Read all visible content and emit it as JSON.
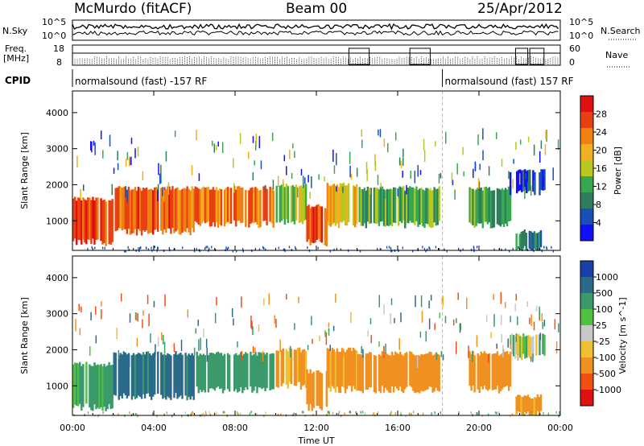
{
  "header": {
    "station": "McMurdo (fitACF)",
    "beam": "Beam 00",
    "date": "25/Apr/2012"
  },
  "noise_panel": {
    "left_label": "N.Sky",
    "right_label": "N.Search",
    "left_ticks": [
      "10^5",
      "10^0"
    ],
    "right_ticks": [
      "10^5",
      "10^0"
    ]
  },
  "freq_panel": {
    "label_line1": "Freq.",
    "label_line2": "[MHz]",
    "left_ticks": [
      "18",
      "8"
    ],
    "right_label": "Nave",
    "right_ticks": [
      "60",
      "0"
    ]
  },
  "cpid_panel": {
    "label": "CPID",
    "modes": [
      {
        "text": "normalsound (fast) -157 RF",
        "start": 0,
        "end": 18.2
      },
      {
        "text": "normalsound (fast) 157 RF",
        "start": 18.2,
        "end": 24
      }
    ]
  },
  "chart_data": [
    {
      "type": "heatmap",
      "quantity": "Power",
      "xlabel": "Time UT",
      "ylabel": "Slant Range [km]",
      "xlim": [
        0,
        24
      ],
      "ylim": [
        180,
        4600
      ],
      "x_ticks": [
        "00:00",
        "04:00",
        "08:00",
        "12:00",
        "16:00",
        "20:00",
        "00:00"
      ],
      "y_ticks": [
        1000,
        2000,
        3000,
        4000
      ],
      "colorbar": {
        "label": "Power [dB]",
        "ticks": [
          4,
          8,
          12,
          16,
          20,
          24,
          28
        ],
        "range": [
          0,
          32
        ],
        "colors": [
          "#1010ff",
          "#1b4fb8",
          "#2e7d5e",
          "#38a850",
          "#b8c820",
          "#f0b020",
          "#f08010",
          "#e84010",
          "#e01010"
        ]
      },
      "echo_bands": [
        {
          "t_start": 0.0,
          "t_end": 2.0,
          "range_low": 400,
          "range_high": 1600,
          "value": 27
        },
        {
          "t_start": 2.0,
          "t_end": 6.0,
          "range_low": 700,
          "range_high": 1900,
          "value": 25
        },
        {
          "t_start": 6.0,
          "t_end": 10.0,
          "range_low": 900,
          "range_high": 1900,
          "value": 24
        },
        {
          "t_start": 10.0,
          "t_end": 11.5,
          "range_low": 1000,
          "range_high": 2000,
          "value": 16
        },
        {
          "t_start": 11.5,
          "t_end": 12.5,
          "range_low": 400,
          "range_high": 1400,
          "value": 26
        },
        {
          "t_start": 12.5,
          "t_end": 14.0,
          "range_low": 900,
          "range_high": 2000,
          "value": 20
        },
        {
          "t_start": 14.0,
          "t_end": 18.0,
          "range_low": 900,
          "range_high": 1900,
          "value": 12
        },
        {
          "t_start": 19.5,
          "t_end": 21.5,
          "range_low": 900,
          "range_high": 1900,
          "value": 12
        },
        {
          "t_start": 21.5,
          "t_end": 23.2,
          "range_low": 1800,
          "range_high": 2400,
          "value": 6
        },
        {
          "t_start": 21.8,
          "t_end": 23.0,
          "range_low": 200,
          "range_high": 700,
          "value": 8
        }
      ]
    },
    {
      "type": "heatmap",
      "quantity": "Velocity",
      "xlabel": "Time UT",
      "ylabel": "Slant Range [km]",
      "xlim": [
        0,
        24
      ],
      "ylim": [
        180,
        4600
      ],
      "x_ticks": [
        "00:00",
        "04:00",
        "08:00",
        "12:00",
        "16:00",
        "20:00",
        "00:00"
      ],
      "y_ticks": [
        1000,
        2000,
        3000,
        4000
      ],
      "colorbar": {
        "label": "Velocity [m s^-1]",
        "ticks": [
          1000,
          500,
          100,
          25,
          -25,
          -100,
          -500,
          -1000
        ],
        "colors": [
          "#1a3fa8",
          "#2a6a8a",
          "#3a9a6a",
          "#50c040",
          "#c8c8c8",
          "#f0c030",
          "#f09020",
          "#f05010",
          "#e01010"
        ]
      },
      "echo_bands": [
        {
          "t_start": 0.0,
          "t_end": 2.0,
          "range_low": 400,
          "range_high": 1600,
          "value": 200
        },
        {
          "t_start": 2.0,
          "t_end": 6.0,
          "range_low": 700,
          "range_high": 1900,
          "value": 600
        },
        {
          "t_start": 6.0,
          "t_end": 10.0,
          "range_low": 900,
          "range_high": 1900,
          "value": 300
        },
        {
          "t_start": 10.0,
          "t_end": 11.5,
          "range_low": 1000,
          "range_high": 2000,
          "value": -150
        },
        {
          "t_start": 11.5,
          "t_end": 12.5,
          "range_low": 400,
          "range_high": 1400,
          "value": -300
        },
        {
          "t_start": 12.5,
          "t_end": 14.0,
          "range_low": 900,
          "range_high": 2000,
          "value": -200
        },
        {
          "t_start": 14.0,
          "t_end": 18.0,
          "range_low": 900,
          "range_high": 1900,
          "value": -250
        },
        {
          "t_start": 19.5,
          "t_end": 21.5,
          "range_low": 900,
          "range_high": 1900,
          "value": -300
        },
        {
          "t_start": 21.5,
          "t_end": 23.2,
          "range_low": 1800,
          "range_high": 2400,
          "value": 50
        },
        {
          "t_start": 21.8,
          "t_end": 23.0,
          "range_low": 200,
          "range_high": 700,
          "value": -200
        }
      ]
    }
  ]
}
